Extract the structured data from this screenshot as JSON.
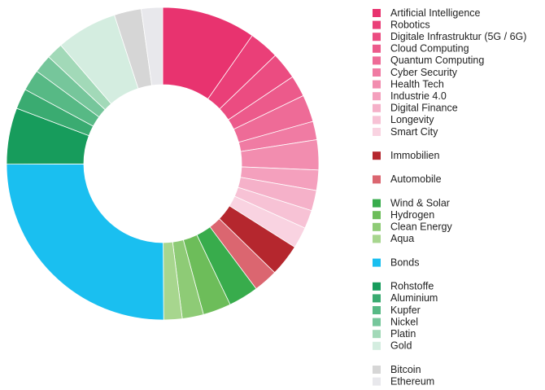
{
  "chart_data": {
    "type": "donut",
    "categories": [
      "Artificial Intelligence",
      "Robotics",
      "Digitale Infrastruktur (5G / 6G)",
      "Cloud Computing",
      "Quantum Computing",
      "Cyber Security",
      "Health Tech",
      "Industrie 4.0",
      "Digital Finance",
      "Longevity",
      "Smart City",
      "Immobilien",
      "Automobile",
      "Wind & Solar",
      "Hydrogen",
      "Clean Energy",
      "Aqua",
      "Bonds",
      "Rohstoffe",
      "Aluminium",
      "Kupfer",
      "Nickel",
      "Platin",
      "Gold",
      "Bitcoin",
      "Ethereum"
    ],
    "values": [
      9.7,
      3.1,
      2.8,
      2.2,
      2.8,
      1.9,
      3.1,
      2.1,
      2.1,
      1.9,
      2.2,
      3.3,
      2.5,
      3.1,
      2.9,
      2.2,
      1.9,
      25,
      5.8,
      2.1,
      2.2,
      1.9,
      1.7,
      6.3,
      2.8,
      2.2
    ],
    "colors": [
      "#e8336f",
      "#ea3f78",
      "#eb4c81",
      "#ec5a8b",
      "#ee6b97",
      "#f07ba3",
      "#f28daf",
      "#f4a0bd",
      "#f5b1c9",
      "#f7c2d5",
      "#f9d3e1",
      "#b5272e",
      "#db6670",
      "#38ac4c",
      "#6dbd5a",
      "#8ecb76",
      "#a7d68e",
      "#1abff0",
      "#179c5c",
      "#3aab71",
      "#57b985",
      "#76c69b",
      "#a2d9b8",
      "#d4ede0",
      "#d6d6d6",
      "#e8e8ec"
    ]
  }
}
